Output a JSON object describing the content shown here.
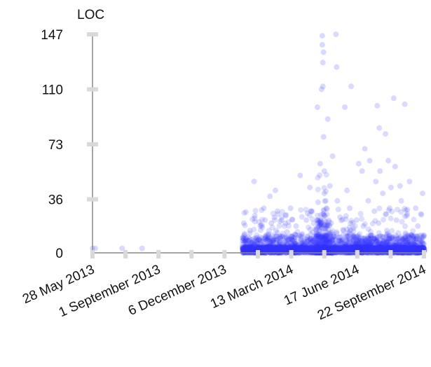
{
  "chart_data": {
    "type": "scatter",
    "title": "",
    "ylabel": "LOC",
    "xlabel": "",
    "ylim": [
      0,
      147
    ],
    "yticks": [
      0,
      36,
      73,
      110,
      147
    ],
    "xlim": [
      "2013-05-28",
      "2014-09-22"
    ],
    "xticks": [
      {
        "date": "2013-05-28",
        "label": "28 May 2013"
      },
      {
        "date": "2013-09-01",
        "label": "1 September 2013"
      },
      {
        "date": "2013-12-06",
        "label": "6 December 2013"
      },
      {
        "date": "2014-03-13",
        "label": "13 March 2014"
      },
      {
        "date": "2014-06-17",
        "label": "17 June 2014"
      },
      {
        "date": "2014-09-22",
        "label": "22 September 2014"
      }
    ],
    "point_color": "#3333ff",
    "grid": false,
    "series": [
      {
        "points": [
          [
            "2013-05-28",
            3
          ],
          [
            "2013-06-01",
            3
          ],
          [
            "2013-07-10",
            3
          ],
          [
            "2013-08-08",
            3
          ],
          [
            "2014-01-03",
            20
          ],
          [
            "2014-01-04",
            12
          ],
          [
            "2014-01-05",
            8
          ],
          [
            "2014-01-05",
            3
          ],
          [
            "2014-01-08",
            5
          ],
          [
            "2014-01-10",
            2
          ],
          [
            "2014-01-12",
            15
          ],
          [
            "2014-01-14",
            4
          ],
          [
            "2014-01-18",
            48
          ],
          [
            "2014-01-19",
            25
          ],
          [
            "2014-01-20",
            10
          ],
          [
            "2014-01-22",
            3
          ],
          [
            "2014-01-25",
            6
          ],
          [
            "2014-01-27",
            18
          ],
          [
            "2014-01-29",
            2
          ],
          [
            "2014-02-01",
            30
          ],
          [
            "2014-02-03",
            22
          ],
          [
            "2014-02-05",
            12
          ],
          [
            "2014-02-06",
            5
          ],
          [
            "2014-02-08",
            3
          ],
          [
            "2014-02-10",
            38
          ],
          [
            "2014-02-12",
            20
          ],
          [
            "2014-02-14",
            8
          ],
          [
            "2014-02-16",
            2
          ],
          [
            "2014-02-18",
            42
          ],
          [
            "2014-02-19",
            15
          ],
          [
            "2014-02-21",
            28
          ],
          [
            "2014-02-23",
            4
          ],
          [
            "2014-02-25",
            10
          ],
          [
            "2014-02-27",
            22
          ],
          [
            "2014-03-01",
            3
          ],
          [
            "2014-03-03",
            7
          ],
          [
            "2014-03-05",
            25
          ],
          [
            "2014-03-07",
            14
          ],
          [
            "2014-03-10",
            2
          ],
          [
            "2014-03-12",
            30
          ],
          [
            "2014-03-14",
            9
          ],
          [
            "2014-03-17",
            4
          ],
          [
            "2014-03-20",
            18
          ],
          [
            "2014-03-24",
            3
          ],
          [
            "2014-03-26",
            52
          ],
          [
            "2014-03-28",
            12
          ],
          [
            "2014-04-01",
            5
          ],
          [
            "2014-04-04",
            22
          ],
          [
            "2014-04-06",
            3
          ],
          [
            "2014-04-09",
            44
          ],
          [
            "2014-04-11",
            28
          ],
          [
            "2014-04-13",
            8
          ],
          [
            "2014-04-15",
            2
          ],
          [
            "2014-04-17",
            16
          ],
          [
            "2014-04-19",
            6
          ],
          [
            "2014-04-20",
            98
          ],
          [
            "2014-04-21",
            34
          ],
          [
            "2014-04-22",
            12
          ],
          [
            "2014-04-24",
            60
          ],
          [
            "2014-04-26",
            110
          ],
          [
            "2014-04-27",
            146
          ],
          [
            "2014-04-27",
            140
          ],
          [
            "2014-04-28",
            128
          ],
          [
            "2014-04-28",
            112
          ],
          [
            "2014-04-29",
            135
          ],
          [
            "2014-04-29",
            78
          ],
          [
            "2014-04-30",
            55
          ],
          [
            "2014-04-30",
            40
          ],
          [
            "2014-05-01",
            25
          ],
          [
            "2014-05-01",
            10
          ],
          [
            "2014-05-02",
            4
          ],
          [
            "2014-05-02",
            2
          ],
          [
            "2014-05-03",
            30
          ],
          [
            "2014-05-04",
            18
          ],
          [
            "2014-05-05",
            90
          ],
          [
            "2014-05-06",
            6
          ],
          [
            "2014-05-08",
            45
          ],
          [
            "2014-05-10",
            20
          ],
          [
            "2014-05-12",
            65
          ],
          [
            "2014-05-14",
            12
          ],
          [
            "2014-05-15",
            3
          ],
          [
            "2014-05-17",
            147
          ],
          [
            "2014-05-18",
            125
          ],
          [
            "2014-05-19",
            35
          ],
          [
            "2014-05-21",
            8
          ],
          [
            "2014-05-23",
            24
          ],
          [
            "2014-05-26",
            2
          ],
          [
            "2014-05-28",
            15
          ],
          [
            "2014-05-30",
            98
          ],
          [
            "2014-06-02",
            42
          ],
          [
            "2014-06-04",
            5
          ],
          [
            "2014-06-06",
            30
          ],
          [
            "2014-06-08",
            112
          ],
          [
            "2014-06-11",
            10
          ],
          [
            "2014-06-14",
            3
          ],
          [
            "2014-06-16",
            22
          ],
          [
            "2014-06-19",
            60
          ],
          [
            "2014-06-21",
            8
          ],
          [
            "2014-06-24",
            55
          ],
          [
            "2014-06-26",
            18
          ],
          [
            "2014-06-28",
            70
          ],
          [
            "2014-07-01",
            4
          ],
          [
            "2014-07-03",
            35
          ],
          [
            "2014-07-05",
            62
          ],
          [
            "2014-07-07",
            12
          ],
          [
            "2014-07-09",
            2
          ],
          [
            "2014-07-12",
            28
          ],
          [
            "2014-07-14",
            48
          ],
          [
            "2014-07-16",
            99
          ],
          [
            "2014-07-18",
            20
          ],
          [
            "2014-07-19",
            84
          ],
          [
            "2014-07-20",
            55
          ],
          [
            "2014-07-22",
            6
          ],
          [
            "2014-07-24",
            40
          ],
          [
            "2014-07-26",
            2
          ],
          [
            "2014-07-28",
            80
          ],
          [
            "2014-07-30",
            15
          ],
          [
            "2014-08-01",
            62
          ],
          [
            "2014-08-03",
            30
          ],
          [
            "2014-08-05",
            44
          ],
          [
            "2014-08-07",
            3
          ],
          [
            "2014-08-09",
            104
          ],
          [
            "2014-08-11",
            58
          ],
          [
            "2014-08-13",
            22
          ],
          [
            "2014-08-15",
            9
          ],
          [
            "2014-08-18",
            45
          ],
          [
            "2014-08-20",
            35
          ],
          [
            "2014-08-22",
            2
          ],
          [
            "2014-08-25",
            100
          ],
          [
            "2014-08-28",
            25
          ],
          [
            "2014-09-01",
            48
          ],
          [
            "2014-09-04",
            12
          ],
          [
            "2014-09-07",
            4
          ],
          [
            "2014-09-10",
            30
          ],
          [
            "2014-09-13",
            18
          ],
          [
            "2014-09-16",
            2
          ],
          [
            "2014-09-20",
            40
          ],
          [
            "2014-09-22",
            6
          ]
        ]
      }
    ],
    "dense_bands": [
      {
        "start": "2014-01-01",
        "end": "2014-09-22",
        "ymax": 12,
        "density": 6
      },
      {
        "start": "2014-01-01",
        "end": "2014-09-22",
        "ymax": 30,
        "density": 1.2
      },
      {
        "start": "2014-04-18",
        "end": "2014-05-10",
        "ymax": 22,
        "density": 8
      },
      {
        "start": "2014-04-20",
        "end": "2014-05-05",
        "ymax": 60,
        "density": 2
      }
    ]
  }
}
